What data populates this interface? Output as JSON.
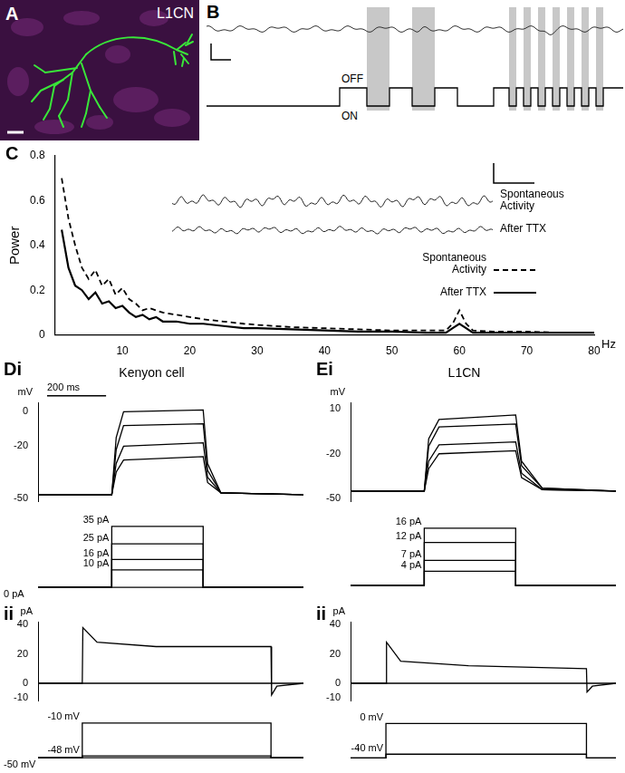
{
  "figure": {
    "A": {
      "panel_label": "A",
      "text": "L1CN"
    },
    "B": {
      "panel_label": "B",
      "labels": [
        "ON",
        "OFF"
      ]
    }
  },
  "chart_data": [
    {
      "type": "line",
      "panel_label": "C",
      "x_label": "Hz",
      "y_label": "Power",
      "x": [
        1,
        2,
        3,
        4,
        5,
        6,
        7,
        8,
        9,
        10,
        11,
        12,
        13,
        14,
        15,
        16,
        18,
        20,
        22,
        25,
        28,
        30,
        35,
        40,
        45,
        50,
        55,
        58,
        59,
        60,
        61,
        62,
        65,
        70,
        75,
        80
      ],
      "series": [
        {
          "name": "Spontaneous Activity",
          "color": "#000000",
          "line_style": "dashed",
          "values": [
            0.7,
            0.52,
            0.4,
            0.3,
            0.25,
            0.29,
            0.22,
            0.25,
            0.18,
            0.21,
            0.16,
            0.14,
            0.11,
            0.12,
            0.11,
            0.1,
            0.09,
            0.08,
            0.07,
            0.06,
            0.05,
            0.045,
            0.035,
            0.03,
            0.025,
            0.02,
            0.02,
            0.02,
            0.05,
            0.11,
            0.05,
            0.02,
            0.015,
            0.015,
            0.01,
            0.01
          ]
        },
        {
          "name": "After TTX",
          "color": "#000000",
          "line_style": "solid",
          "values": [
            0.47,
            0.3,
            0.22,
            0.2,
            0.16,
            0.19,
            0.14,
            0.15,
            0.12,
            0.13,
            0.1,
            0.08,
            0.09,
            0.07,
            0.08,
            0.06,
            0.06,
            0.05,
            0.05,
            0.04,
            0.03,
            0.03,
            0.025,
            0.02,
            0.015,
            0.015,
            0.01,
            0.01,
            0.03,
            0.05,
            0.03,
            0.01,
            0.01,
            0.01,
            0.01,
            0.01
          ]
        }
      ],
      "xlim": [
        0,
        80
      ],
      "xticks": [
        10,
        20,
        30,
        40,
        50,
        60,
        70,
        80
      ],
      "ylim": [
        0,
        0.8
      ],
      "yticks": [
        0,
        0.2,
        0.4,
        0.6,
        0.8
      ],
      "grid": false,
      "legend": "right"
    },
    {
      "type": "line",
      "panel_label": "Di",
      "title": "Kenyon cell",
      "y_label": "mV",
      "x": [
        0,
        250,
        265,
        290,
        560,
        575,
        620,
        900
      ],
      "series": [
        {
          "color": "#000000",
          "values": [
            -48,
            -48,
            -15,
            0,
            1,
            -30,
            -47,
            -48
          ]
        },
        {
          "color": "#000000",
          "values": [
            -48,
            -48,
            -22,
            -8,
            -7,
            -34,
            -47,
            -48
          ]
        },
        {
          "color": "#000000",
          "values": [
            -48,
            -48,
            -30,
            -20,
            -18,
            -38,
            -47,
            -48
          ]
        },
        {
          "color": "#000000",
          "values": [
            -48,
            -48,
            -35,
            -28,
            -26,
            -41,
            -47,
            -48
          ]
        }
      ],
      "xlim": [
        0,
        900
      ],
      "ylim": [
        -52,
        5
      ],
      "yticks": [
        0,
        -20,
        -50
      ],
      "tick_labels": "y",
      "scale_bar": {
        "value": 200,
        "label": "200 ms"
      }
    },
    {
      "type": "line",
      "x": [
        0,
        250,
        250,
        560,
        560,
        900
      ],
      "series": [
        {
          "name": "35 pA",
          "color": "#000000",
          "values": [
            0,
            0,
            35,
            35,
            0,
            0
          ]
        },
        {
          "name": "25 pA",
          "color": "#000000",
          "values": [
            0,
            0,
            25,
            25,
            0,
            0
          ]
        },
        {
          "name": "16 pA",
          "color": "#000000",
          "values": [
            0,
            0,
            16,
            16,
            0,
            0
          ]
        },
        {
          "name": "10 pA",
          "color": "#000000",
          "values": [
            0,
            0,
            10,
            10,
            0,
            0
          ]
        },
        {
          "name": "0 pA",
          "color": "#000000",
          "values": [
            0,
            0,
            0,
            0,
            0,
            0
          ]
        }
      ],
      "xlim": [
        0,
        900
      ],
      "ylim": [
        -3,
        38
      ],
      "tick_labels": false
    },
    {
      "type": "line",
      "panel_label": "ii",
      "y_label": "pA",
      "x": [
        0,
        150,
        152,
        200,
        400,
        790,
        792,
        810,
        900
      ],
      "series": [
        {
          "color": "#000000",
          "values": [
            0,
            0,
            38,
            28,
            25,
            25,
            -8,
            -2,
            0
          ]
        },
        {
          "color": "#000000",
          "values": [
            0,
            0,
            0,
            0,
            0,
            0,
            0,
            0,
            0
          ]
        }
      ],
      "xlim": [
        0,
        900
      ],
      "ylim": [
        -12,
        42
      ],
      "yticks": [
        40,
        20,
        0,
        -10
      ],
      "tick_labels": "y"
    },
    {
      "type": "line",
      "x": [
        0,
        150,
        150,
        790,
        790,
        900
      ],
      "series": [
        {
          "name": "-10 mV",
          "color": "#000000",
          "values": [
            -50,
            -50,
            -10,
            -10,
            -50,
            -50
          ]
        },
        {
          "name": "-48 mV",
          "color": "#000000",
          "values": [
            -50,
            -50,
            -48,
            -48,
            -50,
            -50
          ]
        },
        {
          "name": "-50 mV",
          "color": "#000000",
          "values": [
            -50,
            -50,
            -50,
            -50,
            -50,
            -50
          ]
        }
      ],
      "xlim": [
        0,
        900
      ],
      "ylim": [
        -53,
        -7
      ],
      "tick_labels": false
    },
    {
      "type": "line",
      "panel_label": "Ei",
      "title": "L1CN",
      "y_label": "mV",
      "x": [
        0,
        250,
        265,
        300,
        560,
        580,
        650,
        900
      ],
      "series": [
        {
          "color": "#000000",
          "values": [
            -45,
            -45,
            -10,
            3,
            6,
            -25,
            -43,
            -45
          ]
        },
        {
          "color": "#000000",
          "values": [
            -45,
            -45,
            -15,
            -2,
            0,
            -28,
            -43,
            -45
          ]
        },
        {
          "color": "#000000",
          "values": [
            -45,
            -45,
            -25,
            -14,
            -12,
            -33,
            -44,
            -45
          ]
        },
        {
          "color": "#000000",
          "values": [
            -45,
            -45,
            -30,
            -20,
            -18,
            -36,
            -44,
            -45
          ]
        }
      ],
      "xlim": [
        0,
        900
      ],
      "ylim": [
        -52,
        14
      ],
      "yticks": [
        10,
        -20,
        -50
      ],
      "tick_labels": "y"
    },
    {
      "type": "line",
      "x": [
        0,
        250,
        250,
        560,
        560,
        900
      ],
      "series": [
        {
          "name": "16 pA",
          "color": "#000000",
          "values": [
            0,
            0,
            16,
            16,
            0,
            0
          ]
        },
        {
          "name": "12 pA",
          "color": "#000000",
          "values": [
            0,
            0,
            12,
            12,
            0,
            0
          ]
        },
        {
          "name": "7 pA",
          "color": "#000000",
          "values": [
            0,
            0,
            7,
            7,
            0,
            0
          ]
        },
        {
          "name": "4 pA",
          "color": "#000000",
          "values": [
            0,
            0,
            4,
            4,
            0,
            0
          ]
        }
      ],
      "xlim": [
        0,
        900
      ],
      "ylim": [
        -2,
        18
      ],
      "tick_labels": false
    },
    {
      "type": "line",
      "panel_label": "ii",
      "y_label": "pA",
      "x": [
        0,
        120,
        122,
        170,
        400,
        800,
        802,
        820,
        900
      ],
      "series": [
        {
          "color": "#000000",
          "values": [
            0,
            0,
            28,
            15,
            12,
            10,
            -6,
            -2,
            0
          ]
        },
        {
          "color": "#000000",
          "values": [
            0,
            0,
            0,
            0,
            0,
            0,
            0,
            0,
            0
          ]
        }
      ],
      "xlim": [
        0,
        900
      ],
      "ylim": [
        -12,
        42
      ],
      "yticks": [
        40,
        20,
        0,
        -10
      ],
      "tick_labels": "y"
    },
    {
      "type": "line",
      "x": [
        0,
        120,
        120,
        800,
        800,
        900
      ],
      "series": [
        {
          "name": "0 mV",
          "color": "#000000",
          "values": [
            -45,
            -45,
            0,
            0,
            -45,
            -45
          ]
        },
        {
          "name": "-40 mV",
          "color": "#000000",
          "values": [
            -45,
            -45,
            -40,
            -40,
            -45,
            -45
          ]
        }
      ],
      "xlim": [
        0,
        900
      ],
      "ylim": [
        -48,
        4
      ],
      "tick_labels": false
    }
  ]
}
